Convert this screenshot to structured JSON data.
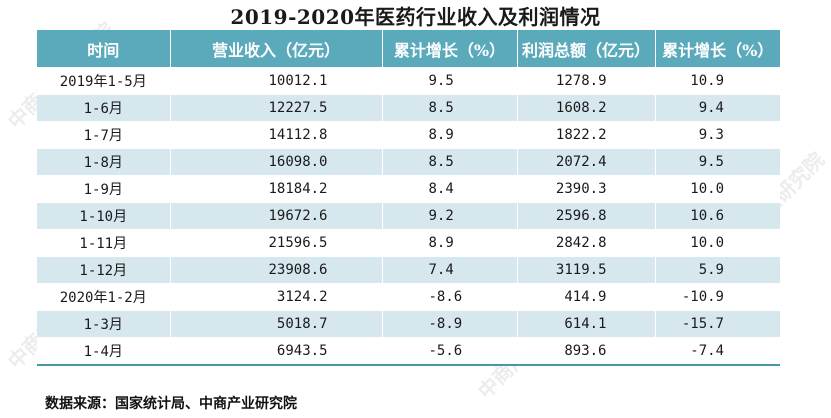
{
  "title": "2019-2020年医药行业收入及利润情况",
  "columns": [
    "时间",
    "营业收入（亿元）",
    "累计增长（%）",
    "利润总额（亿元）",
    "累计增长（%）"
  ],
  "rows": [
    [
      "2019年1-5月",
      "10012.1",
      "9.5",
      "1278.9",
      "10.9"
    ],
    [
      "1-6月",
      "12227.5",
      "8.5",
      "1608.2",
      "9.4"
    ],
    [
      "1-7月",
      "14112.8",
      "8.9",
      "1822.2",
      "9.3"
    ],
    [
      "1-8月",
      "16098.0",
      "8.5",
      "2072.4",
      "9.5"
    ],
    [
      "1-9月",
      "18184.2",
      "8.4",
      "2390.3",
      "10.0"
    ],
    [
      "1-10月",
      "19672.6",
      "9.2",
      "2596.8",
      "10.6"
    ],
    [
      "1-11月",
      "21596.5",
      "8.9",
      "2842.8",
      "10.0"
    ],
    [
      "1-12月",
      "23908.6",
      "7.4",
      "3119.5",
      "5.9"
    ],
    [
      "2020年1-2月",
      "3124.2",
      "-8.6",
      "414.9",
      "-10.9"
    ],
    [
      "1-3月",
      "5018.7",
      "-8.9",
      "614.1",
      "-15.7"
    ],
    [
      "1-4月",
      "6943.5",
      "-5.6",
      "893.6",
      "-7.4"
    ]
  ],
  "source": "数据来源：国家统计局、中商产业研究院",
  "watermark": "中商产业研究院",
  "colors": {
    "header": "#5aaabc",
    "stripe": "#d6e7ee",
    "header_text": "#ffffff"
  }
}
